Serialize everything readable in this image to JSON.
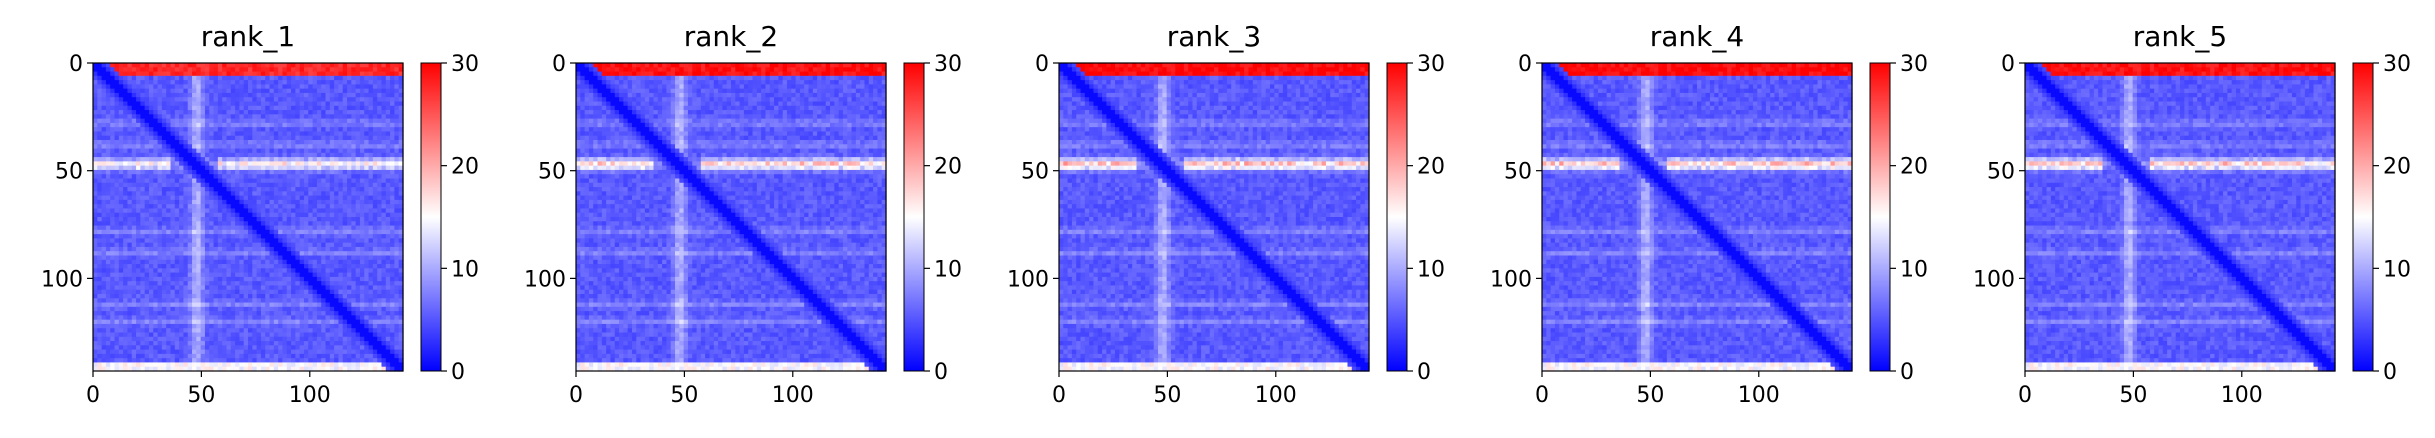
{
  "chart_data": [
    {
      "type": "heatmap",
      "title": "rank_1",
      "xlim": [
        0,
        143
      ],
      "ylim": [
        143,
        0
      ],
      "xticks": [
        0,
        50,
        100
      ],
      "yticks": [
        0,
        50,
        100
      ],
      "xtick_labels": [
        "0",
        "50",
        "100"
      ],
      "ytick_labels": [
        "0",
        "50",
        "100"
      ],
      "colorbar": {
        "min": 0,
        "max": 30,
        "ticks": [
          0,
          10,
          20,
          30
        ],
        "tick_labels": [
          "0",
          "10",
          "20",
          "30"
        ],
        "cmap": "bwr"
      },
      "intensity": 0.8
    },
    {
      "type": "heatmap",
      "title": "rank_2",
      "xlim": [
        0,
        143
      ],
      "ylim": [
        143,
        0
      ],
      "xticks": [
        0,
        50,
        100
      ],
      "yticks": [
        0,
        50,
        100
      ],
      "xtick_labels": [
        "0",
        "50",
        "100"
      ],
      "ytick_labels": [
        "0",
        "50",
        "100"
      ],
      "colorbar": {
        "min": 0,
        "max": 30,
        "ticks": [
          0,
          10,
          20,
          30
        ],
        "tick_labels": [
          "0",
          "10",
          "20",
          "30"
        ],
        "cmap": "bwr"
      },
      "intensity": 0.95
    },
    {
      "type": "heatmap",
      "title": "rank_3",
      "xlim": [
        0,
        143
      ],
      "ylim": [
        143,
        0
      ],
      "xticks": [
        0,
        50,
        100
      ],
      "yticks": [
        0,
        50,
        100
      ],
      "xtick_labels": [
        "0",
        "50",
        "100"
      ],
      "ytick_labels": [
        "0",
        "50",
        "100"
      ],
      "colorbar": {
        "min": 0,
        "max": 30,
        "ticks": [
          0,
          10,
          20,
          30
        ],
        "tick_labels": [
          "0",
          "10",
          "20",
          "30"
        ],
        "cmap": "bwr"
      },
      "intensity": 1.0
    },
    {
      "type": "heatmap",
      "title": "rank_4",
      "xlim": [
        0,
        143
      ],
      "ylim": [
        143,
        0
      ],
      "xticks": [
        0,
        50,
        100
      ],
      "yticks": [
        0,
        50,
        100
      ],
      "xtick_labels": [
        "0",
        "50",
        "100"
      ],
      "ytick_labels": [
        "0",
        "50",
        "100"
      ],
      "colorbar": {
        "min": 0,
        "max": 30,
        "ticks": [
          0,
          10,
          20,
          30
        ],
        "tick_labels": [
          "0",
          "10",
          "20",
          "30"
        ],
        "cmap": "bwr"
      },
      "intensity": 1.0
    },
    {
      "type": "heatmap",
      "title": "rank_5",
      "xlim": [
        0,
        143
      ],
      "ylim": [
        143,
        0
      ],
      "xticks": [
        0,
        50,
        100
      ],
      "yticks": [
        0,
        50,
        100
      ],
      "xtick_labels": [
        "0",
        "50",
        "100"
      ],
      "ytick_labels": [
        "0",
        "50",
        "100"
      ],
      "colorbar": {
        "min": 0,
        "max": 30,
        "ticks": [
          0,
          10,
          20,
          30
        ],
        "tick_labels": [
          "0",
          "10",
          "20",
          "30"
        ],
        "cmap": "bwr"
      },
      "intensity": 0.95
    }
  ]
}
